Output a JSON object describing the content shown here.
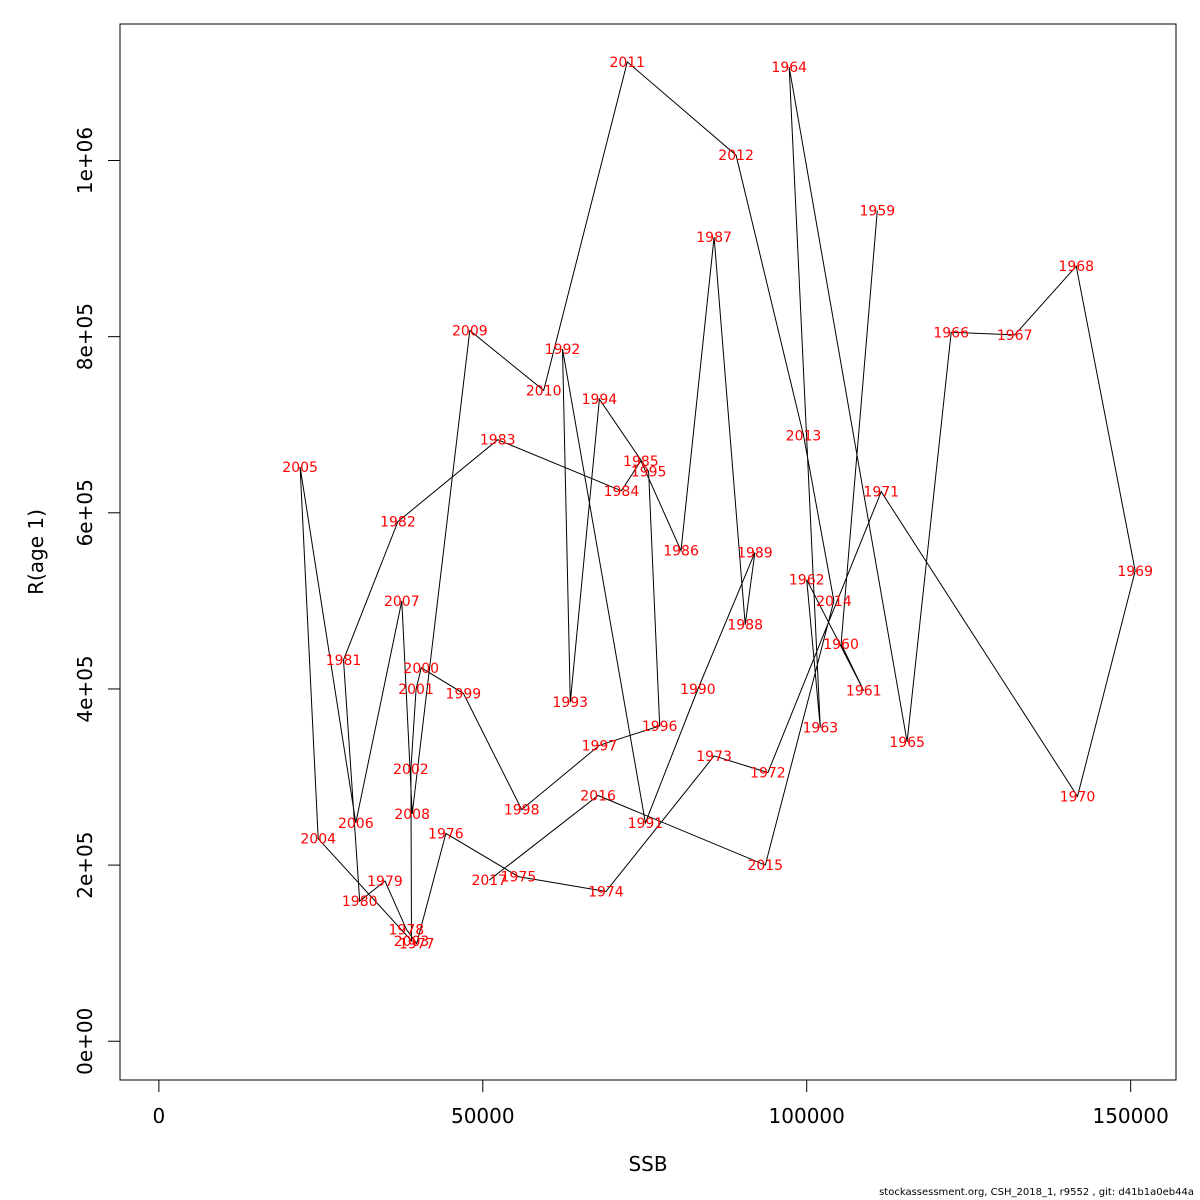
{
  "chart_data": {
    "type": "line",
    "xlabel": "SSB",
    "ylabel": "R(age 1)",
    "xlim": [
      -6000,
      157000
    ],
    "ylim": [
      -44000,
      1155000
    ],
    "x_ticks": [
      0,
      50000,
      100000,
      150000
    ],
    "x_tick_labels": [
      "0",
      "50000",
      "100000",
      "150000"
    ],
    "y_ticks": [
      0,
      200000,
      400000,
      600000,
      800000,
      1000000
    ],
    "y_tick_labels": [
      "0e+00",
      "2e+05",
      "4e+05",
      "6e+05",
      "8e+05",
      "1e+06"
    ],
    "line_color": "#000000",
    "label_color": "#ff0000",
    "points": [
      {
        "year": "1959",
        "ssb": 110900,
        "r": 943000
      },
      {
        "year": "1960",
        "ssb": 105300,
        "r": 451000
      },
      {
        "year": "1961",
        "ssb": 108800,
        "r": 398000
      },
      {
        "year": "1962",
        "ssb": 100000,
        "r": 524000
      },
      {
        "year": "1963",
        "ssb": 102100,
        "r": 356000
      },
      {
        "year": "1964",
        "ssb": 97300,
        "r": 1106000
      },
      {
        "year": "1965",
        "ssb": 115500,
        "r": 340000
      },
      {
        "year": "1966",
        "ssb": 122300,
        "r": 805000
      },
      {
        "year": "1967",
        "ssb": 132100,
        "r": 802000
      },
      {
        "year": "1968",
        "ssb": 141600,
        "r": 880000
      },
      {
        "year": "1969",
        "ssb": 150700,
        "r": 534000
      },
      {
        "year": "1970",
        "ssb": 141800,
        "r": 278000
      },
      {
        "year": "1971",
        "ssb": 111500,
        "r": 624000
      },
      {
        "year": "1972",
        "ssb": 94000,
        "r": 305000
      },
      {
        "year": "1973",
        "ssb": 85700,
        "r": 324000
      },
      {
        "year": "1974",
        "ssb": 69000,
        "r": 170000
      },
      {
        "year": "1975",
        "ssb": 55500,
        "r": 187000
      },
      {
        "year": "1976",
        "ssb": 44300,
        "r": 236000
      },
      {
        "year": "1977",
        "ssb": 39800,
        "r": 111000
      },
      {
        "year": "1978",
        "ssb": 38200,
        "r": 127000
      },
      {
        "year": "1979",
        "ssb": 34900,
        "r": 182000
      },
      {
        "year": "1980",
        "ssb": 31000,
        "r": 159000
      },
      {
        "year": "1981",
        "ssb": 28500,
        "r": 433000
      },
      {
        "year": "1982",
        "ssb": 36900,
        "r": 590000
      },
      {
        "year": "1983",
        "ssb": 52300,
        "r": 683000
      },
      {
        "year": "1984",
        "ssb": 71400,
        "r": 625000
      },
      {
        "year": "1985",
        "ssb": 74400,
        "r": 659000
      },
      {
        "year": "1986",
        "ssb": 80600,
        "r": 557000
      },
      {
        "year": "1987",
        "ssb": 85700,
        "r": 913000
      },
      {
        "year": "1988",
        "ssb": 90500,
        "r": 473000
      },
      {
        "year": "1989",
        "ssb": 92000,
        "r": 555000
      },
      {
        "year": "1990",
        "ssb": 83200,
        "r": 400000
      },
      {
        "year": "1991",
        "ssb": 75100,
        "r": 248000
      },
      {
        "year": "1992",
        "ssb": 62300,
        "r": 786000
      },
      {
        "year": "1993",
        "ssb": 63500,
        "r": 385000
      },
      {
        "year": "1994",
        "ssb": 68000,
        "r": 729000
      },
      {
        "year": "1995",
        "ssb": 75600,
        "r": 647000
      },
      {
        "year": "1996",
        "ssb": 77300,
        "r": 358000
      },
      {
        "year": "1997",
        "ssb": 68000,
        "r": 336000
      },
      {
        "year": "1998",
        "ssb": 56000,
        "r": 263000
      },
      {
        "year": "1999",
        "ssb": 47000,
        "r": 395000
      },
      {
        "year": "2000",
        "ssb": 40500,
        "r": 424000
      },
      {
        "year": "2001",
        "ssb": 39700,
        "r": 400000
      },
      {
        "year": "2002",
        "ssb": 38900,
        "r": 309000
      },
      {
        "year": "2003",
        "ssb": 39000,
        "r": 114000
      },
      {
        "year": "2004",
        "ssb": 24600,
        "r": 230000
      },
      {
        "year": "2005",
        "ssb": 21800,
        "r": 652000
      },
      {
        "year": "2006",
        "ssb": 30400,
        "r": 248000
      },
      {
        "year": "2007",
        "ssb": 37500,
        "r": 500000
      },
      {
        "year": "2008",
        "ssb": 39100,
        "r": 258000
      },
      {
        "year": "2009",
        "ssb": 48000,
        "r": 807000
      },
      {
        "year": "2010",
        "ssb": 59400,
        "r": 739000
      },
      {
        "year": "2011",
        "ssb": 72300,
        "r": 1112000
      },
      {
        "year": "2012",
        "ssb": 89100,
        "r": 1006000
      },
      {
        "year": "2013",
        "ssb": 99500,
        "r": 688000
      },
      {
        "year": "2014",
        "ssb": 104200,
        "r": 500000
      },
      {
        "year": "2015",
        "ssb": 93600,
        "r": 200000
      },
      {
        "year": "2016",
        "ssb": 67800,
        "r": 279000
      },
      {
        "year": "2017",
        "ssb": 51000,
        "r": 183000
      }
    ]
  },
  "footer": "stockassessment.org, CSH_2018_1, r9552 , git: d41b1a0eb44a"
}
